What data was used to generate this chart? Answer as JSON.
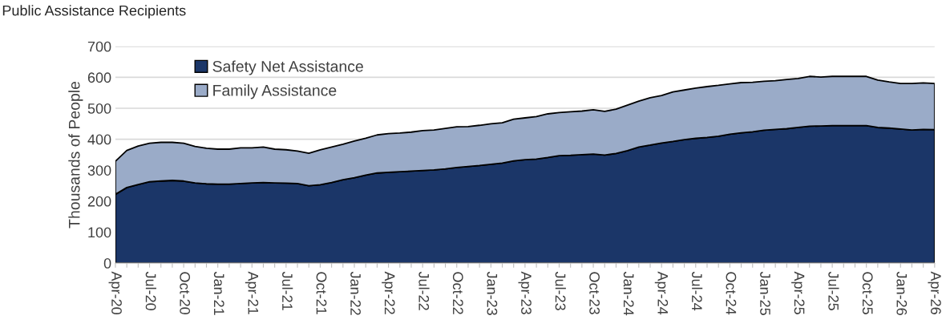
{
  "chart_data": {
    "type": "area",
    "stacked": true,
    "title": "Public Assistance Recipients",
    "ylabel": "Thousands of People",
    "categories": [
      "Apr-20",
      null,
      null,
      "Jul-20",
      null,
      null,
      "Oct-20",
      null,
      null,
      "Jan-21",
      null,
      null,
      "Apr-21",
      null,
      null,
      "Jul-21",
      null,
      null,
      "Oct-21",
      null,
      null,
      "Jan-22",
      null,
      null,
      "Apr-22",
      null,
      null,
      "Jul-22",
      null,
      null,
      "Oct-22",
      null,
      null,
      "Jan-23",
      null,
      null,
      "Apr-23",
      null,
      null,
      "Jul-23",
      null,
      null,
      "Oct-23",
      null,
      null,
      "Jan-24",
      null,
      null,
      "Apr-24",
      null,
      null,
      "Jul-24",
      null,
      null,
      "Oct-24",
      null,
      null,
      "Jan-25",
      null,
      null,
      "Apr-25",
      null,
      null,
      "Jul-25",
      null,
      null,
      "Oct-25",
      null,
      null,
      "Jan-26",
      null,
      null,
      "Apr-26"
    ],
    "series": [
      {
        "name": "Safety Net Assistance",
        "color": "#1b3668",
        "values": [
          222,
          244,
          254,
          263,
          265,
          267,
          265,
          259,
          256,
          255,
          255,
          257,
          259,
          260,
          259,
          258,
          257,
          250,
          253,
          260,
          269,
          276,
          284,
          291,
          293,
          295,
          297,
          299,
          301,
          304,
          309,
          312,
          315,
          319,
          323,
          330,
          334,
          336,
          341,
          347,
          348,
          350,
          352,
          349,
          354,
          363,
          375,
          381,
          388,
          393,
          399,
          403,
          406,
          410,
          416,
          421,
          424,
          429,
          432,
          434,
          438,
          442,
          443,
          444,
          444,
          444,
          444,
          438,
          436,
          433,
          430,
          432,
          431
        ]
      },
      {
        "name": "Family Assistance",
        "color": "#9aabc8",
        "values": [
          107,
          120,
          124,
          124,
          125,
          123,
          122,
          118,
          115,
          113,
          113,
          115,
          113,
          115,
          109,
          108,
          105,
          105,
          113,
          115,
          115,
          118,
          119,
          123,
          125,
          125,
          126,
          129,
          129,
          131,
          131,
          129,
          130,
          131,
          130,
          135,
          135,
          137,
          141,
          139,
          141,
          141,
          143,
          141,
          143,
          147,
          148,
          153,
          153,
          160,
          160,
          162,
          164,
          164,
          163,
          162,
          160,
          158,
          157,
          159,
          158,
          161,
          158,
          159,
          159,
          159,
          159,
          153,
          149,
          147,
          150,
          150,
          149
        ]
      }
    ],
    "ylim": [
      0,
      700
    ],
    "yticks": [
      0,
      100,
      200,
      300,
      400,
      500,
      600,
      700
    ],
    "grid": "y",
    "legend": "top left"
  }
}
